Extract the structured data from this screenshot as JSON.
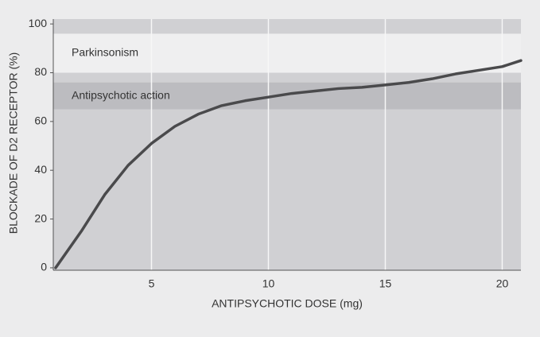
{
  "chart_data": {
    "type": "line",
    "x_label": "ANTIPSYCHOTIC DOSE (mg)",
    "y_label": "BLOCKADE OF D2 RECEPTOR (%)",
    "x": [
      0.9,
      2,
      3,
      4,
      5,
      6,
      7,
      8,
      9,
      10,
      11,
      12,
      13,
      14,
      15,
      16,
      17,
      18,
      19,
      20,
      20.8
    ],
    "series": [
      {
        "color": "#4a4a4c",
        "values": [
          0,
          15,
          30,
          42,
          51,
          58,
          63,
          66.5,
          68.5,
          70,
          71.5,
          72.5,
          73.5,
          74,
          75,
          76,
          77.5,
          79.5,
          81,
          82.5,
          85
        ]
      }
    ],
    "bands": [
      {
        "label": "Parkinsonism",
        "range": [
          80,
          96
        ],
        "color": "#efeff0"
      },
      {
        "label": "Antipsychotic action",
        "range": [
          65,
          76
        ],
        "color": "#bcbcc0"
      }
    ],
    "xlim": [
      0.8,
      20.8
    ],
    "xticks": [
      5,
      10,
      15,
      20
    ],
    "ylim": [
      -1,
      102
    ],
    "yticks": [
      0,
      20,
      40,
      60,
      80,
      100
    ],
    "grid": true
  }
}
